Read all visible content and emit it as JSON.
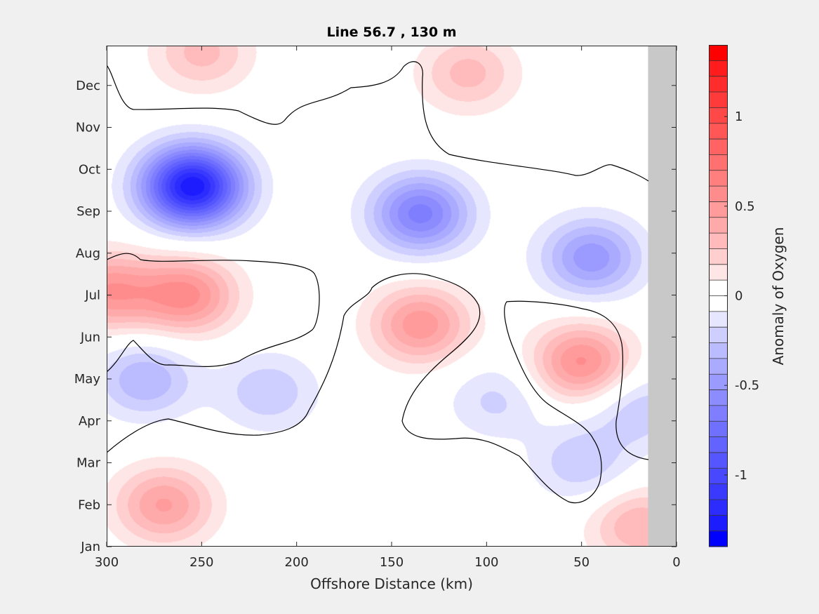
{
  "chart_data": {
    "type": "heatmap",
    "subtype": "filled-contour",
    "title": "Line 56.7 , 130 m",
    "xlabel": "Offshore Distance (km)",
    "ylabel": "",
    "xlim": [
      300,
      0
    ],
    "x_direction": "reversed",
    "x_ticks": [
      300,
      250,
      200,
      150,
      100,
      50,
      0
    ],
    "y_ticks": [
      "Jan",
      "Feb",
      "Mar",
      "Apr",
      "May",
      "Jun",
      "Jul",
      "Aug",
      "Sep",
      "Oct",
      "Nov",
      "Dec"
    ],
    "y_months_range": [
      1,
      12.95
    ],
    "no_data_x_range": [
      15,
      0
    ],
    "no_data_color": "#c8c8c8",
    "zero_contour_color": "#000000",
    "colorbar": {
      "label": "Anomaly of Oxygen",
      "ticks": [
        -1,
        -0.5,
        0,
        0.5,
        1
      ],
      "range": [
        -1.4,
        1.4
      ],
      "levels": 28,
      "colors": [
        "#0000ff",
        "#1c1cff",
        "#2c2cff",
        "#3a3aff",
        "#4848ff",
        "#5656ff",
        "#6363ff",
        "#7070ff",
        "#7e7eff",
        "#8c8cff",
        "#9b9bff",
        "#aaaaff",
        "#bbbbff",
        "#cfcfff",
        "#e6e6ff",
        "#ffffff",
        "#ffffff",
        "#ffe6e6",
        "#ffcfcf",
        "#ffbbbb",
        "#ffaaaa",
        "#ff9b9b",
        "#ff8c8c",
        "#ff7e7e",
        "#ff7070",
        "#ff6363",
        "#ff5656",
        "#ff4848",
        "#ff3a3a",
        "#ff2c2c",
        "#ff1c1c",
        "#ff0000"
      ]
    },
    "features": [
      {
        "type": "max",
        "x": 255,
        "month": 9.6,
        "value": -1.3
      },
      {
        "type": "min",
        "x": 135,
        "month": 8.95,
        "value": -0.65
      },
      {
        "type": "min",
        "x": 45,
        "month": 7.9,
        "value": -0.5
      },
      {
        "type": "max",
        "x": 258,
        "month": 7.0,
        "value": 0.55
      },
      {
        "type": "max",
        "x": 135,
        "month": 6.3,
        "value": 0.5
      },
      {
        "type": "max",
        "x": 50,
        "month": 5.4,
        "value": 0.55
      },
      {
        "type": "max",
        "x": 270,
        "month": 2.0,
        "value": 0.45
      },
      {
        "type": "max",
        "x": 250,
        "month": 12.8,
        "value": 0.3
      },
      {
        "type": "max",
        "x": 110,
        "month": 12.3,
        "value": 0.3
      },
      {
        "type": "min",
        "x": 280,
        "month": 5.0,
        "value": -0.35
      },
      {
        "type": "min",
        "x": 215,
        "month": 4.7,
        "value": -0.25
      },
      {
        "type": "min",
        "x": 95,
        "month": 4.5,
        "value": -0.2
      },
      {
        "type": "min",
        "x": 50,
        "month": 3.0,
        "value": -0.25
      },
      {
        "type": "min",
        "x": 20,
        "month": 4.3,
        "value": -0.25
      },
      {
        "type": "max",
        "x": 20,
        "month": 1.5,
        "value": 0.35
      },
      {
        "type": "max",
        "x": 300,
        "month": 7.1,
        "value": 0.5
      }
    ]
  }
}
